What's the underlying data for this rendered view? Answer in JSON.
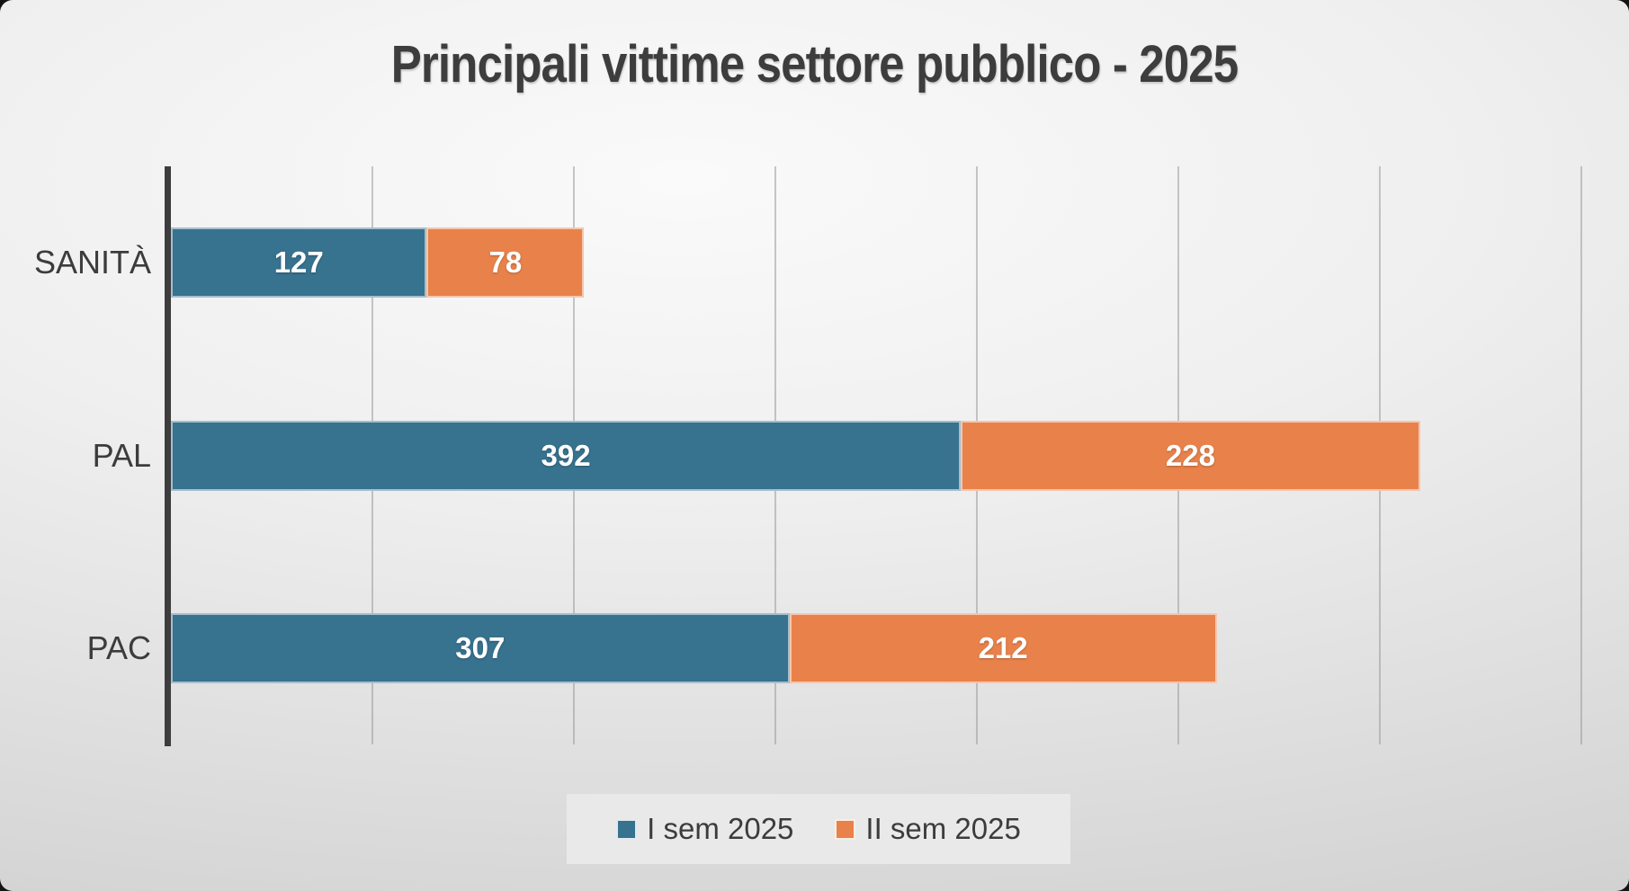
{
  "chart_data": {
    "type": "bar",
    "orientation": "horizontal",
    "stacked": true,
    "title": "Principali vittime settore pubblico - 2025",
    "categories": [
      "SANITÀ",
      "PAL",
      "PAC"
    ],
    "series": [
      {
        "name": "I sem 2025",
        "color": "#37728f",
        "values": [
          127,
          392,
          307
        ]
      },
      {
        "name": "II sem 2025",
        "color": "#e8824a",
        "values": [
          78,
          228,
          212
        ]
      }
    ],
    "totals": [
      205,
      620,
      519
    ],
    "xlim": [
      0,
      700
    ],
    "gridline_step": 100,
    "grid": "vertical",
    "legend_position": "bottom",
    "value_labels": "inside-center",
    "colors": {
      "title_text": "#3d3d3d",
      "category_text": "#3c3c3c",
      "value_text": "#ffffff",
      "axis_line": "#3d3d3d",
      "gridline": "#9b9b9b",
      "legend_background": "#e9e9e9"
    }
  }
}
